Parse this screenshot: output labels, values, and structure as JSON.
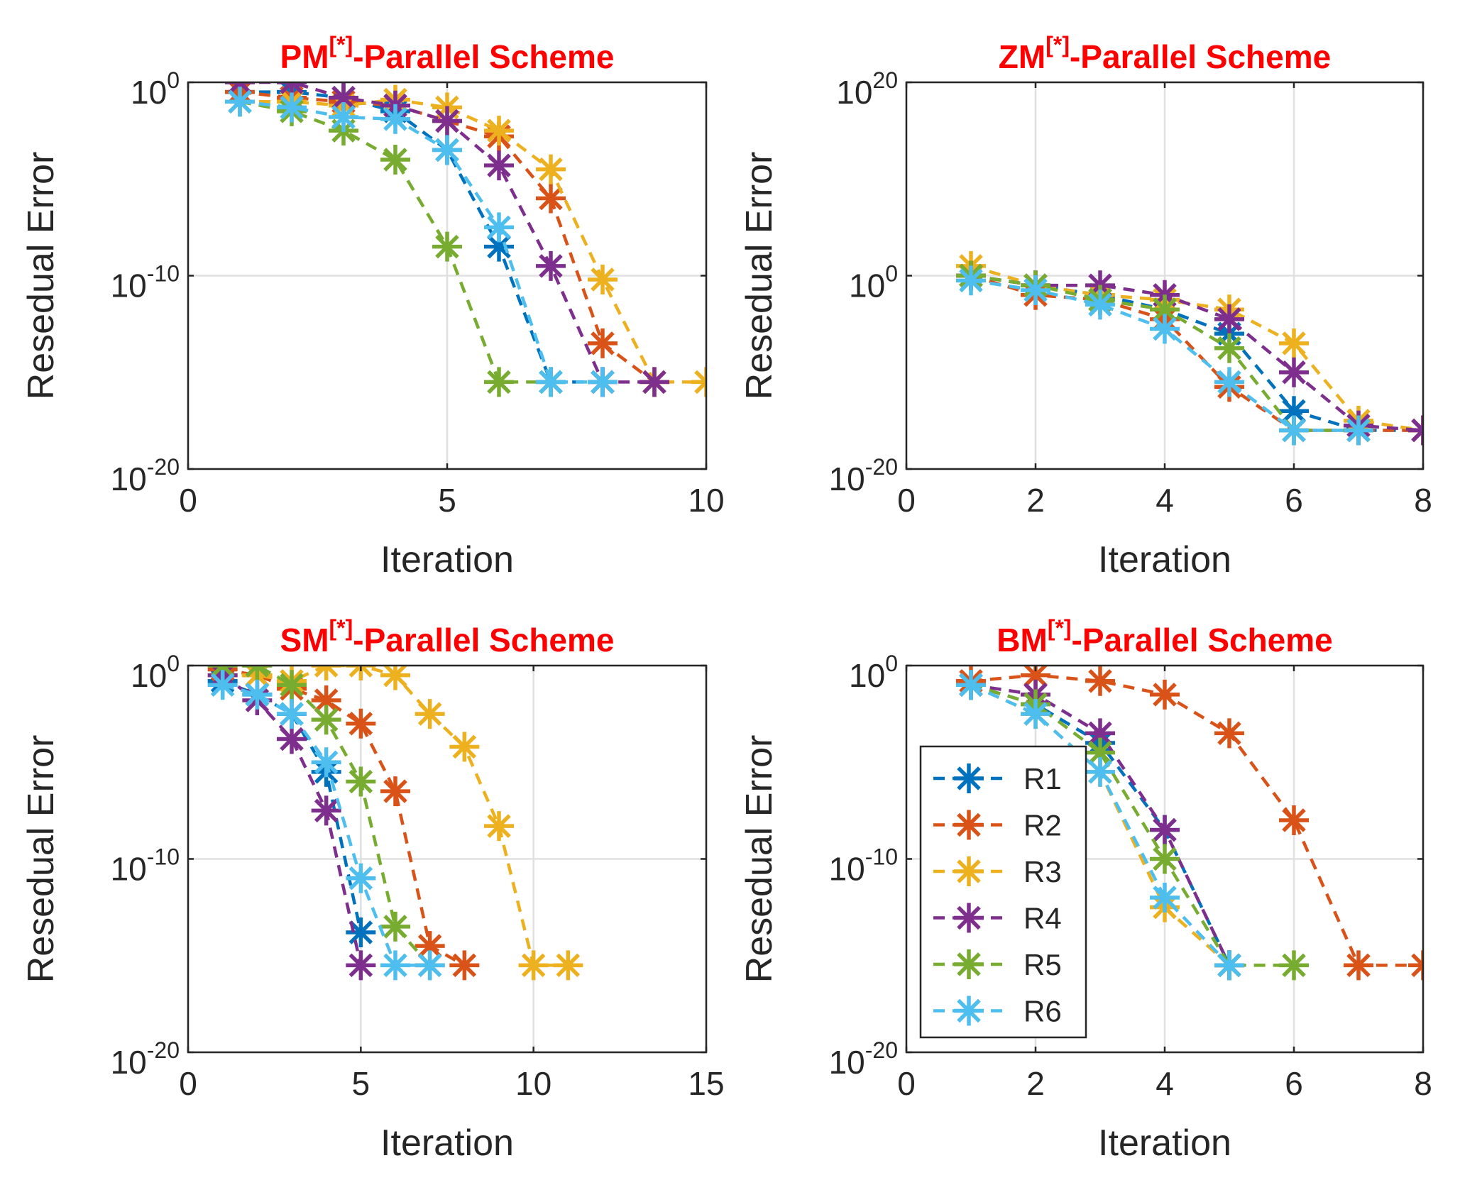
{
  "chart_data": [
    {
      "type": "line",
      "title": {
        "main": "PM",
        "sup": "[*]",
        "rest": "-Parallel Scheme"
      },
      "xlabel": "Iteration",
      "ylabel": "Resedual Error",
      "xlim": [
        0,
        10
      ],
      "xticks": [
        0,
        5,
        10
      ],
      "ylim_exp": [
        -20,
        0
      ],
      "yticks_exp": [
        -20,
        -10,
        0
      ],
      "y_scale": "log",
      "grid": true,
      "series": [
        {
          "name": "R1",
          "x": [
            1,
            2,
            3,
            4,
            5,
            6,
            7,
            8
          ],
          "log10_y": [
            -0.5,
            -0.5,
            -0.8,
            -1.5,
            -3.5,
            -8.5,
            -15.5,
            -15.5
          ]
        },
        {
          "name": "R2",
          "x": [
            1,
            2,
            3,
            4,
            5,
            6,
            7,
            8,
            9
          ],
          "log10_y": [
            -0.5,
            -0.8,
            -1.0,
            -1.2,
            -2.0,
            -2.8,
            -6.0,
            -13.5,
            -15.5
          ]
        },
        {
          "name": "R3",
          "x": [
            1,
            2,
            3,
            4,
            5,
            6,
            7,
            8,
            9,
            10
          ],
          "log10_y": [
            -1.0,
            -1.0,
            -1.2,
            -0.9,
            -1.3,
            -2.5,
            -4.5,
            -10.2,
            -15.5,
            -15.5
          ]
        },
        {
          "name": "R4",
          "x": [
            1,
            2,
            3,
            4,
            5,
            6,
            7,
            8,
            9
          ],
          "log10_y": [
            0.0,
            0.0,
            -0.8,
            -1.2,
            -2.0,
            -4.3,
            -9.5,
            -15.5,
            -15.5
          ]
        },
        {
          "name": "R5",
          "x": [
            1,
            2,
            3,
            4,
            5,
            6,
            7
          ],
          "log10_y": [
            -1.0,
            -1.5,
            -2.5,
            -4.0,
            -8.5,
            -15.5,
            -15.5
          ]
        },
        {
          "name": "R6",
          "x": [
            1,
            2,
            3,
            4,
            5,
            6,
            7,
            8
          ],
          "log10_y": [
            -1.0,
            -1.3,
            -1.8,
            -1.9,
            -3.5,
            -7.5,
            -15.5,
            -15.5
          ]
        }
      ]
    },
    {
      "type": "line",
      "title": {
        "main": "ZM",
        "sup": "[*]",
        "rest": "-Parallel Scheme"
      },
      "xlabel": "Iteration",
      "ylabel": "Resedual Error",
      "xlim": [
        0,
        8
      ],
      "xticks": [
        0,
        2,
        4,
        6,
        8
      ],
      "ylim_exp": [
        -20,
        20
      ],
      "yticks_exp": [
        -20,
        0,
        20
      ],
      "y_scale": "log",
      "grid": true,
      "series": [
        {
          "name": "R1",
          "x": [
            1,
            2,
            3,
            4,
            5,
            6,
            7,
            8
          ],
          "log10_y": [
            0.0,
            -1.0,
            -2.0,
            -3.5,
            -6.0,
            -14.0,
            -16.0,
            -16.0
          ]
        },
        {
          "name": "R2",
          "x": [
            1,
            2,
            3,
            4,
            5,
            6,
            7,
            8
          ],
          "log10_y": [
            0.0,
            -2.0,
            -2.5,
            -4.5,
            -11.5,
            -16.0,
            -16.0,
            -16.0
          ]
        },
        {
          "name": "R3",
          "x": [
            1,
            2,
            3,
            4,
            5,
            6,
            7,
            8
          ],
          "log10_y": [
            1.0,
            -1.0,
            -2.0,
            -2.5,
            -3.5,
            -7.0,
            -15.0,
            -16.0
          ]
        },
        {
          "name": "R4",
          "x": [
            1,
            2,
            3,
            4,
            5,
            6,
            7,
            8
          ],
          "log10_y": [
            0.0,
            -1.0,
            -1.0,
            -2.0,
            -4.5,
            -10.0,
            -15.5,
            -16.0
          ]
        },
        {
          "name": "R5",
          "x": [
            1,
            2,
            3,
            4,
            5,
            6,
            7
          ],
          "log10_y": [
            0.0,
            -1.0,
            -2.5,
            -3.5,
            -7.5,
            -16.0,
            -16.0
          ]
        },
        {
          "name": "R6",
          "x": [
            1,
            2,
            3,
            4,
            5,
            6,
            7
          ],
          "log10_y": [
            -0.5,
            -1.5,
            -3.0,
            -5.5,
            -11.0,
            -16.0,
            -16.0
          ]
        }
      ]
    },
    {
      "type": "line",
      "title": {
        "main": "SM",
        "sup": "[*]",
        "rest": "-Parallel Scheme"
      },
      "xlabel": "Iteration",
      "ylabel": "Resedual Error",
      "xlim": [
        0,
        15
      ],
      "xticks": [
        0,
        5,
        10,
        15
      ],
      "ylim_exp": [
        -20,
        0
      ],
      "yticks_exp": [
        -20,
        -10,
        0
      ],
      "y_scale": "log",
      "grid": true,
      "series": [
        {
          "name": "R1",
          "x": [
            1,
            2,
            3,
            4,
            5
          ],
          "log10_y": [
            -0.8,
            -1.5,
            -2.5,
            -5.5,
            -13.8
          ]
        },
        {
          "name": "R2",
          "x": [
            1,
            2,
            3,
            4,
            5,
            6,
            7,
            8
          ],
          "log10_y": [
            -0.2,
            -0.5,
            -1.2,
            -1.8,
            -3.0,
            -6.5,
            -14.5,
            -15.5
          ]
        },
        {
          "name": "R3",
          "x": [
            1,
            2,
            3,
            4,
            5,
            6,
            7,
            8,
            9,
            10,
            11
          ],
          "log10_y": [
            -0.5,
            -0.5,
            -0.8,
            0.0,
            0.0,
            -0.5,
            -2.5,
            -4.2,
            -8.3,
            -15.5,
            -15.5
          ]
        },
        {
          "name": "R4",
          "x": [
            1,
            2,
            3,
            4,
            5
          ],
          "log10_y": [
            -0.5,
            -1.8,
            -3.8,
            -7.5,
            -15.5
          ]
        },
        {
          "name": "R5",
          "x": [
            1,
            2,
            3,
            4,
            5,
            6,
            7
          ],
          "log10_y": [
            0.0,
            0.0,
            -1.0,
            -2.8,
            -6.0,
            -13.5,
            -15.5
          ]
        },
        {
          "name": "R6",
          "x": [
            1,
            2,
            3,
            4,
            5,
            6,
            7
          ],
          "log10_y": [
            -1.0,
            -1.5,
            -2.5,
            -5.0,
            -11.0,
            -15.5,
            -15.5
          ]
        }
      ]
    },
    {
      "type": "line",
      "title": {
        "main": "BM",
        "sup": "[*]",
        "rest": "-Parallel Scheme"
      },
      "xlabel": "Iteration",
      "ylabel": "Resedual Error",
      "xlim": [
        0,
        8
      ],
      "xticks": [
        0,
        2,
        4,
        6,
        8
      ],
      "ylim_exp": [
        -20,
        0
      ],
      "yticks_exp": [
        -20,
        -10,
        0
      ],
      "y_scale": "log",
      "grid": true,
      "legend": {
        "placement": "bottom-left",
        "entries": [
          "R1",
          "R2",
          "R3",
          "R4",
          "R5",
          "R6"
        ]
      },
      "series": [
        {
          "name": "R1",
          "x": [
            1,
            2,
            3,
            4,
            5
          ],
          "log10_y": [
            -1.0,
            -2.0,
            -4.0,
            -8.5,
            -15.5
          ]
        },
        {
          "name": "R2",
          "x": [
            1,
            2,
            3,
            4,
            5,
            6,
            7,
            8
          ],
          "log10_y": [
            -0.8,
            -0.5,
            -0.8,
            -1.5,
            -3.5,
            -8.0,
            -15.5,
            -15.5
          ]
        },
        {
          "name": "R3",
          "x": [
            1,
            2,
            3,
            4,
            5
          ],
          "log10_y": [
            -1.0,
            -2.5,
            -5.5,
            -12.5,
            -15.5
          ]
        },
        {
          "name": "R4",
          "x": [
            1,
            2,
            3,
            4,
            5
          ],
          "log10_y": [
            -1.0,
            -1.5,
            -3.5,
            -8.5,
            -15.5
          ]
        },
        {
          "name": "R5",
          "x": [
            1,
            2,
            3,
            4,
            5,
            6
          ],
          "log10_y": [
            -1.0,
            -2.0,
            -4.5,
            -10.0,
            -15.5,
            -15.5
          ]
        },
        {
          "name": "R6",
          "x": [
            1,
            2,
            3,
            4,
            5
          ],
          "log10_y": [
            -1.0,
            -2.5,
            -5.5,
            -12.0,
            -15.5
          ]
        }
      ]
    }
  ],
  "series_colors": {
    "R1": "#0072bd",
    "R2": "#d95319",
    "R3": "#edb120",
    "R4": "#7e2f8e",
    "R5": "#77ac30",
    "R6": "#4dbeee"
  }
}
